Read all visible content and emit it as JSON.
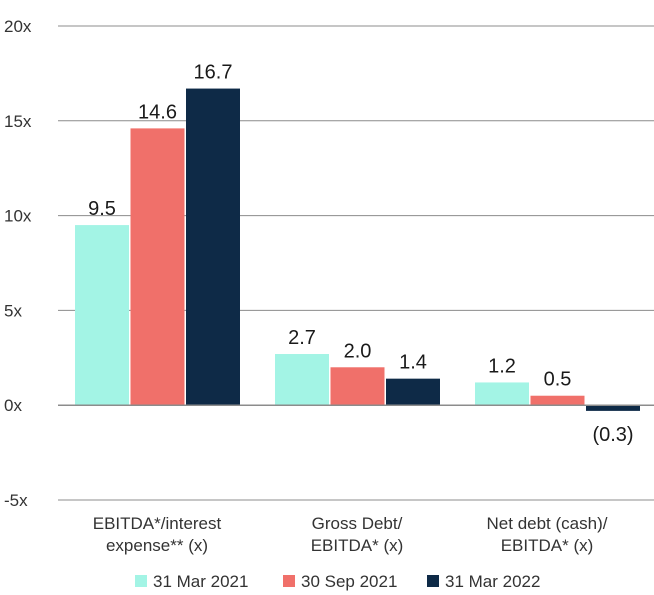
{
  "chart_data": {
    "type": "bar",
    "categories": [
      [
        "EBITDA*/interest",
        "expense** (x)"
      ],
      [
        "Gross Debt/",
        "EBITDA* (x)"
      ],
      [
        "Net debt (cash)/",
        "EBITDA* (x)"
      ]
    ],
    "series": [
      {
        "name": "31 Mar 2021",
        "color": "#a3f4e5",
        "values": [
          9.5,
          2.7,
          1.2
        ],
        "labels": [
          "9.5",
          "2.7",
          "1.2"
        ]
      },
      {
        "name": "30 Sep 2021",
        "color": "#f0706a",
        "values": [
          14.6,
          2.0,
          0.5
        ],
        "labels": [
          "14.6",
          "2.0",
          "0.5"
        ]
      },
      {
        "name": "31 Mar 2022",
        "color": "#0e2a47",
        "values": [
          16.7,
          1.4,
          -0.3
        ],
        "labels": [
          "16.7",
          "1.4",
          "(0.3)"
        ]
      }
    ],
    "ylim": [
      -5,
      20
    ],
    "yticks": [
      20,
      15,
      10,
      5,
      0,
      -5
    ],
    "ytick_labels": [
      "20x",
      "15x",
      "10x",
      "5x",
      "0x",
      "-5x"
    ],
    "grid": true,
    "legend": "bottom"
  }
}
